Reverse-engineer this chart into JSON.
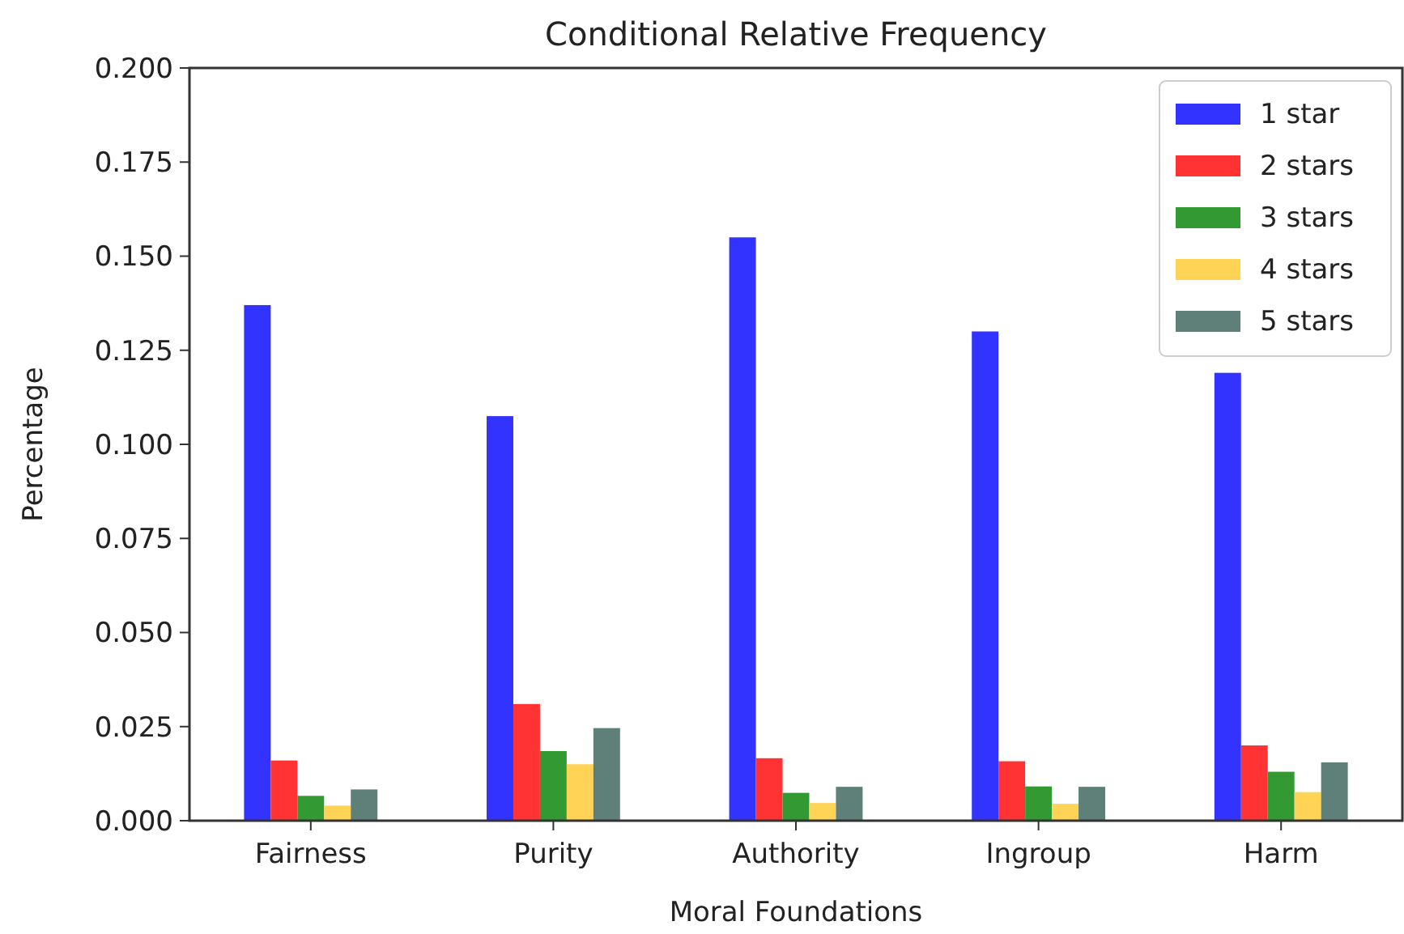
{
  "chart_data": {
    "type": "bar",
    "title": "Conditional Relative Frequency",
    "xlabel": "Moral Foundations",
    "ylabel": "Percentage",
    "categories": [
      "Fairness",
      "Purity",
      "Authority",
      "Ingroup",
      "Harm"
    ],
    "series": [
      {
        "name": "1 star",
        "color": "#3333ff",
        "values": [
          0.137,
          0.1075,
          0.155,
          0.13,
          0.119
        ]
      },
      {
        "name": "2 stars",
        "color": "#ff3333",
        "values": [
          0.016,
          0.031,
          0.0166,
          0.0158,
          0.02
        ]
      },
      {
        "name": "3 stars",
        "color": "#339933",
        "values": [
          0.0066,
          0.0185,
          0.0074,
          0.0091,
          0.013
        ]
      },
      {
        "name": "4 stars",
        "color": "#ffd355",
        "values": [
          0.004,
          0.015,
          0.0047,
          0.0045,
          0.0076
        ]
      },
      {
        "name": "5 stars",
        "color": "#5f7f79",
        "values": [
          0.0083,
          0.0246,
          0.009,
          0.009,
          0.0155
        ]
      }
    ],
    "ylim": [
      0,
      0.2
    ],
    "yticks": [
      {
        "value": 0,
        "label": "0.000"
      },
      {
        "value": 0.025,
        "label": "0.025"
      },
      {
        "value": 0.05,
        "label": "0.050"
      },
      {
        "value": 0.075,
        "label": "0.075"
      },
      {
        "value": 0.1,
        "label": "0.100"
      },
      {
        "value": 0.125,
        "label": "0.125"
      },
      {
        "value": 0.15,
        "label": "0.150"
      },
      {
        "value": 0.175,
        "label": "0.175"
      },
      {
        "value": 0.2,
        "label": "0.200"
      }
    ],
    "legend": "top right",
    "grid": false
  }
}
